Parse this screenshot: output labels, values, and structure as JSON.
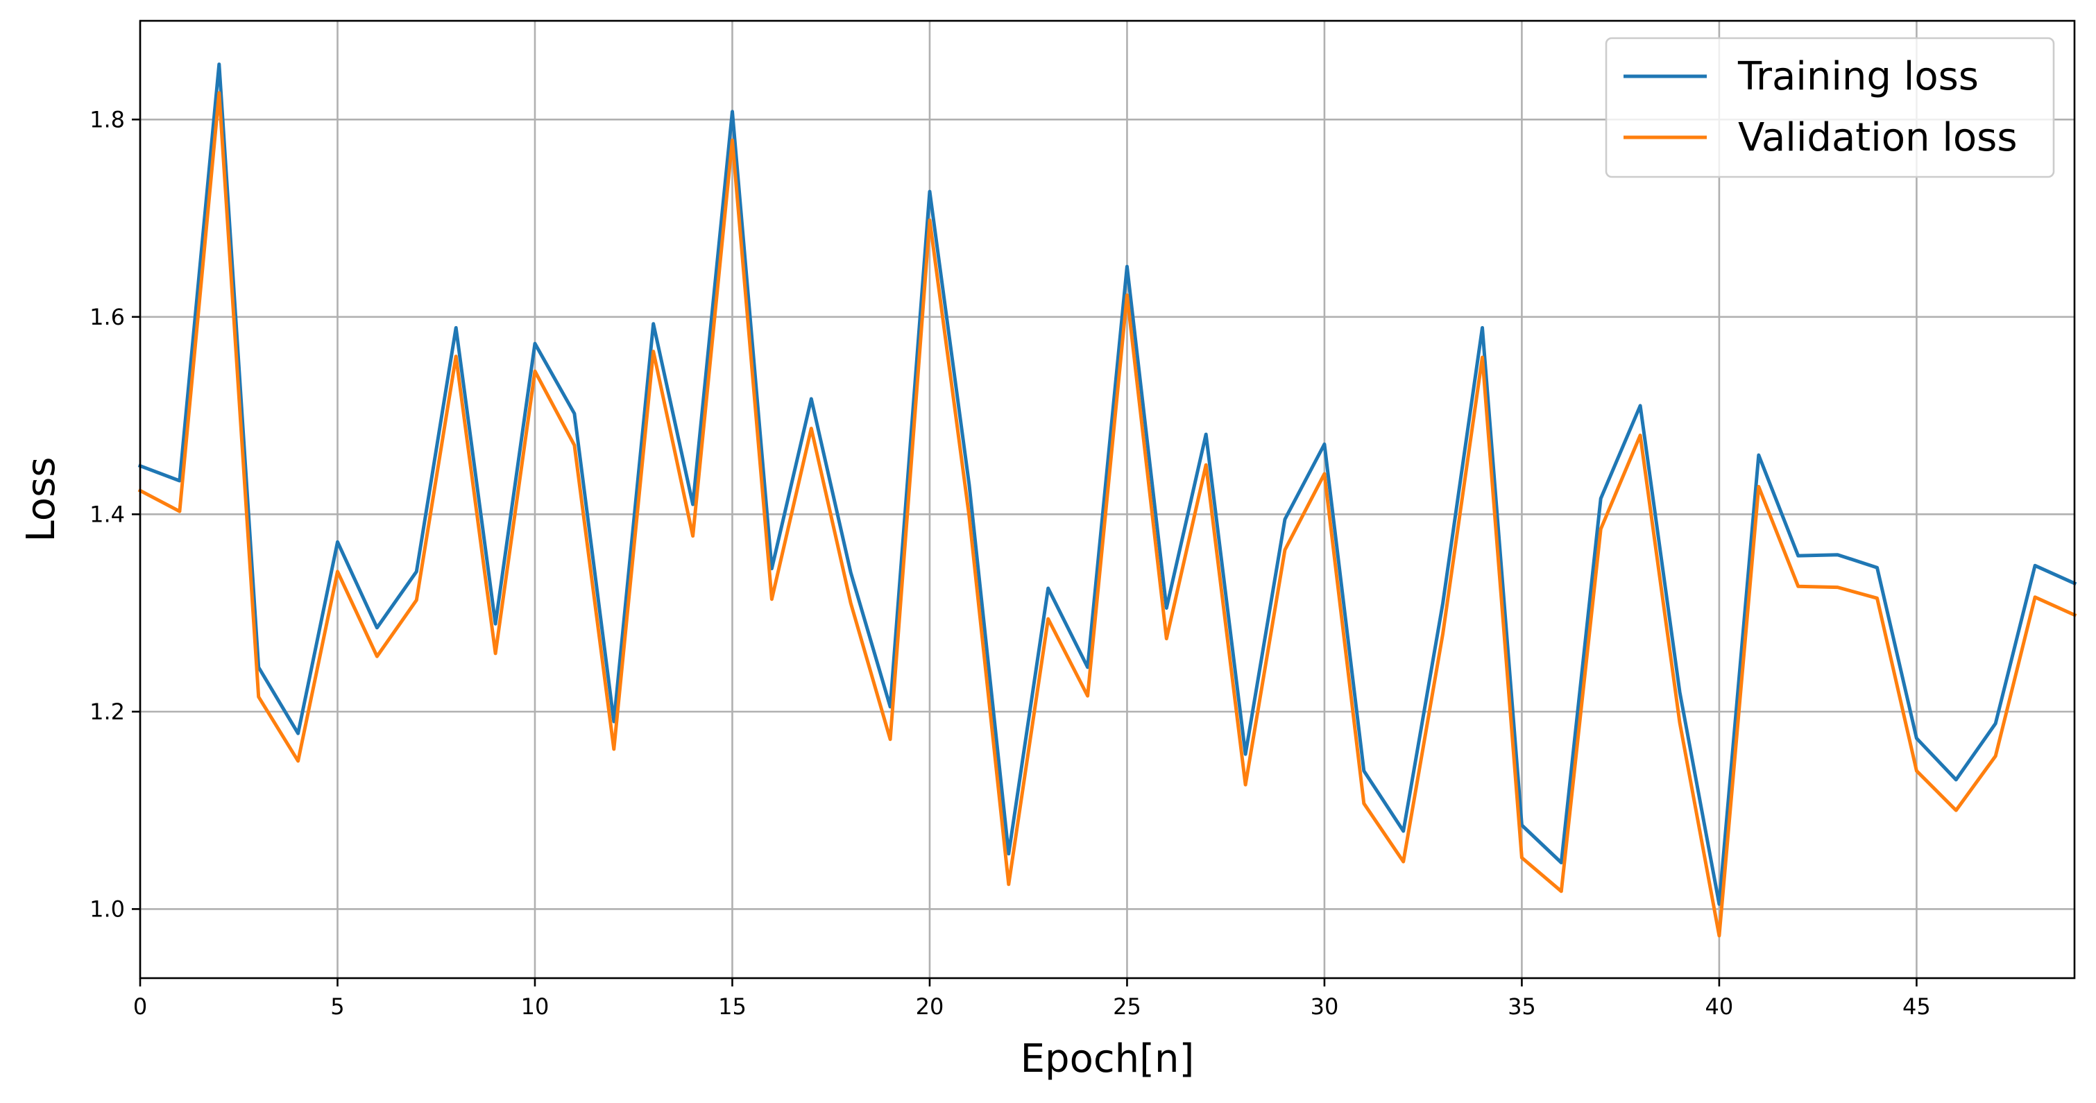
{
  "chart_data": {
    "type": "line",
    "title": "",
    "xlabel": "Epoch[n]",
    "ylabel": "Loss",
    "xlim": [
      0,
      49
    ],
    "ylim": [
      0.93,
      1.9
    ],
    "xticks": [
      0,
      5,
      10,
      15,
      20,
      25,
      30,
      35,
      40,
      45
    ],
    "yticks": [
      1.0,
      1.2,
      1.4,
      1.6,
      1.8
    ],
    "grid": true,
    "legend_position": "top-right",
    "x": [
      0,
      1,
      2,
      3,
      4,
      5,
      6,
      7,
      8,
      9,
      10,
      11,
      12,
      13,
      14,
      15,
      16,
      17,
      18,
      19,
      20,
      21,
      22,
      23,
      24,
      25,
      26,
      27,
      28,
      29,
      30,
      31,
      32,
      33,
      34,
      35,
      36,
      37,
      38,
      39,
      40,
      41,
      42,
      43,
      44,
      45,
      46,
      47,
      48,
      49
    ],
    "series": [
      {
        "name": "Training loss",
        "color": "#1f77b4",
        "values": [
          1.449,
          1.434,
          1.856,
          1.245,
          1.178,
          1.372,
          1.285,
          1.342,
          1.589,
          1.289,
          1.573,
          1.502,
          1.19,
          1.593,
          1.41,
          1.808,
          1.345,
          1.517,
          1.341,
          1.205,
          1.727,
          1.43,
          1.056,
          1.325,
          1.245,
          1.651,
          1.305,
          1.481,
          1.157,
          1.395,
          1.471,
          1.14,
          1.079,
          1.31,
          1.589,
          1.085,
          1.047,
          1.416,
          1.51,
          1.22,
          1.005,
          1.46,
          1.358,
          1.359,
          1.346,
          1.173,
          1.131,
          1.188,
          1.348,
          1.33
        ]
      },
      {
        "name": "Validation loss",
        "color": "#ff7f0e",
        "values": [
          1.424,
          1.403,
          1.827,
          1.215,
          1.15,
          1.342,
          1.256,
          1.313,
          1.56,
          1.259,
          1.545,
          1.47,
          1.162,
          1.565,
          1.378,
          1.779,
          1.314,
          1.487,
          1.31,
          1.172,
          1.698,
          1.398,
          1.025,
          1.294,
          1.216,
          1.622,
          1.274,
          1.45,
          1.126,
          1.364,
          1.441,
          1.107,
          1.048,
          1.279,
          1.559,
          1.052,
          1.018,
          1.385,
          1.48,
          1.189,
          0.973,
          1.428,
          1.327,
          1.326,
          1.315,
          1.14,
          1.1,
          1.155,
          1.316,
          1.298
        ]
      }
    ]
  }
}
